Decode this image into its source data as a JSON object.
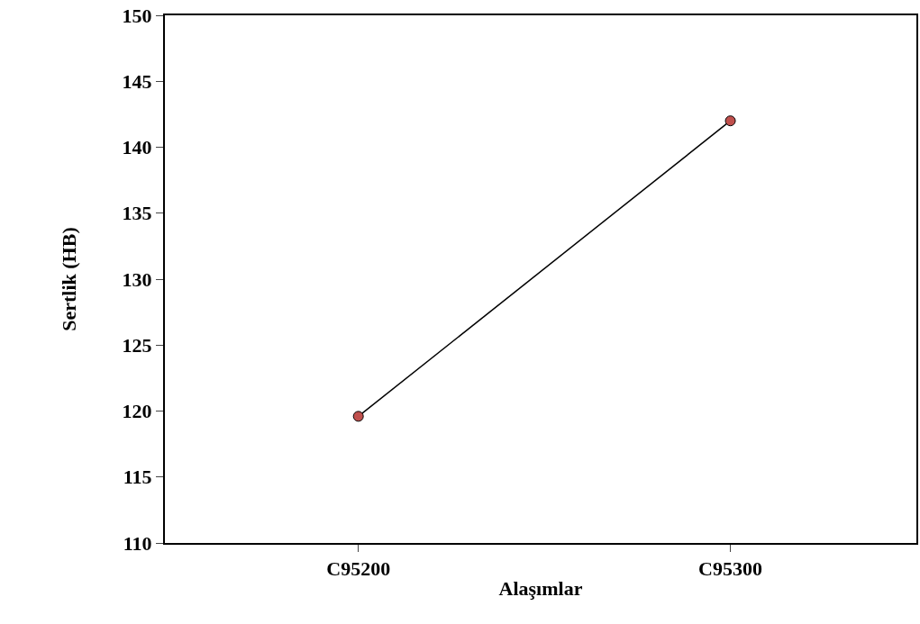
{
  "chart_data": {
    "type": "line",
    "xlabel": "Alaşımlar",
    "ylabel": "Sertlik (HB)",
    "categories": [
      "C95200",
      "C95300"
    ],
    "series": [
      {
        "color": "#c0504d",
        "values": [
          119.6,
          142.0
        ]
      }
    ],
    "ylim": [
      110,
      150
    ],
    "yticks": [
      110,
      115,
      120,
      125,
      130,
      135,
      140,
      145,
      150
    ],
    "marker": "circle",
    "line_style": "solid"
  }
}
